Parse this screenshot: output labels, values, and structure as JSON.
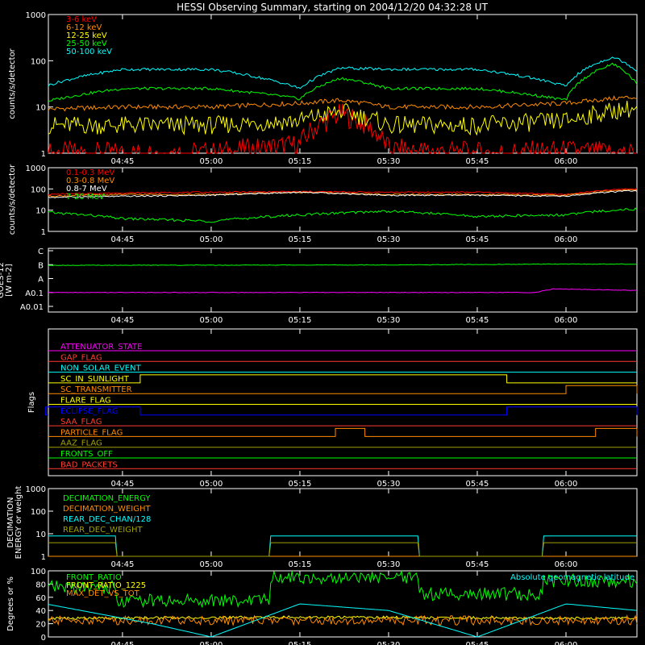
{
  "chart_data": [
    {
      "type": "line",
      "title": "HESSI Observing Summary, starting on 2004/12/20 04:32:28 UT",
      "ylabel": "counts/s/detector",
      "yscale": "log",
      "ylim": [
        1,
        1000
      ],
      "yticks": [
        "1",
        "10",
        "100",
        "1000"
      ],
      "xlim": [
        "04:32:28",
        "06:12:00"
      ],
      "xticks": [
        "04:45",
        "05:00",
        "05:15",
        "05:30",
        "05:45",
        "06:00"
      ],
      "series": [
        {
          "name": "3-6 keV",
          "color": "#ff0000",
          "x": [
            "04:32",
            "04:45",
            "05:00",
            "05:15",
            "05:22",
            "05:30",
            "05:45",
            "06:00",
            "06:10"
          ],
          "y": [
            1,
            1,
            1,
            1.5,
            7,
            1.2,
            1,
            1.1,
            1
          ]
        },
        {
          "name": "6-12 keV",
          "color": "#ff8c00",
          "x": [
            "04:32",
            "04:45",
            "05:00",
            "05:15",
            "05:22",
            "05:30",
            "05:45",
            "06:00",
            "06:10"
          ],
          "y": [
            9,
            10,
            10,
            12,
            14,
            10,
            10,
            12,
            16
          ]
        },
        {
          "name": "12-25 keV",
          "color": "#ffff00",
          "x": [
            "04:32",
            "04:45",
            "05:00",
            "05:15",
            "05:22",
            "05:30",
            "05:45",
            "06:00",
            "06:10"
          ],
          "y": [
            4,
            4,
            4,
            5,
            8,
            4,
            4,
            5,
            9
          ]
        },
        {
          "name": "25-50 keV",
          "color": "#00ff00",
          "x": [
            "04:32",
            "04:45",
            "05:00",
            "05:15",
            "05:22",
            "05:30",
            "05:45",
            "06:00",
            "06:08",
            "06:12"
          ],
          "y": [
            13,
            25,
            25,
            15,
            42,
            25,
            25,
            14,
            85,
            30
          ]
        },
        {
          "name": "50-100 keV",
          "color": "#00ffff",
          "x": [
            "04:32",
            "04:45",
            "05:00",
            "05:15",
            "05:22",
            "05:30",
            "05:45",
            "06:00",
            "06:08",
            "06:12"
          ],
          "y": [
            28,
            65,
            65,
            25,
            70,
            65,
            65,
            28,
            120,
            60
          ]
        }
      ]
    },
    {
      "type": "line",
      "ylabel": "counts/s/detector",
      "yscale": "log",
      "ylim": [
        1,
        1000
      ],
      "yticks": [
        "1",
        "10",
        "100",
        "1000"
      ],
      "xticks": [
        "04:45",
        "05:00",
        "05:15",
        "05:30",
        "05:45",
        "06:00"
      ],
      "series": [
        {
          "name": "0.1-0.3 MeV",
          "color": "#ff0000",
          "x": [
            "04:32",
            "04:45",
            "05:00",
            "05:15",
            "05:30",
            "05:45",
            "06:00",
            "06:10"
          ],
          "y": [
            55,
            65,
            70,
            75,
            70,
            70,
            55,
            100
          ]
        },
        {
          "name": "0.3-0.8 MeV",
          "color": "#ff8c00",
          "x": [
            "04:32",
            "04:45",
            "05:00",
            "05:15",
            "05:30",
            "05:45",
            "06:00",
            "06:10"
          ],
          "y": [
            45,
            55,
            55,
            70,
            55,
            55,
            50,
            90
          ]
        },
        {
          "name": "0.8-7 MeV",
          "color": "#ffffff",
          "x": [
            "04:32",
            "04:45",
            "05:00",
            "05:15",
            "05:30",
            "05:45",
            "06:00",
            "06:10"
          ],
          "y": [
            40,
            45,
            50,
            70,
            50,
            50,
            45,
            80
          ]
        },
        {
          "name": "7-20 MeV",
          "color": "#00ff00",
          "x": [
            "04:32",
            "04:45",
            "05:00",
            "05:15",
            "05:30",
            "05:45",
            "06:00",
            "06:10"
          ],
          "y": [
            8,
            4,
            3,
            6,
            9,
            5,
            6,
            11
          ]
        }
      ]
    },
    {
      "type": "line",
      "ylabel": "GOES-12 [W m-2]",
      "ylim_labels": [
        "A0.01",
        "A0.1",
        "A",
        "B",
        "C"
      ],
      "xticks": [
        "04:45",
        "05:00",
        "05:15",
        "05:30",
        "05:45",
        "06:00"
      ],
      "series": [
        {
          "name": "long",
          "color": "#00ff00",
          "x": [
            "04:32",
            "05:30",
            "06:00",
            "06:12"
          ],
          "y": [
            9e-07,
            9.5e-07,
            1.1e-06,
            1.1e-06
          ]
        },
        {
          "name": "short",
          "color": "#ff00ff",
          "x": [
            "04:32",
            "05:55",
            "05:58",
            "06:12"
          ],
          "y": [
            1e-08,
            1e-08,
            1.8e-08,
            1.4e-08
          ]
        }
      ]
    },
    {
      "type": "line",
      "ylabel": "Flags",
      "xticks": [
        "04:45",
        "05:00",
        "05:15",
        "05:30",
        "05:45",
        "06:00"
      ],
      "flags": [
        {
          "name": "ATTENUATOR_STATE",
          "color": "#ff00ff",
          "on": []
        },
        {
          "name": "GAP_FLAG",
          "color": "#ff3b30",
          "on": []
        },
        {
          "name": "NON_SOLAR_EVENT",
          "color": "#00ffff",
          "on": []
        },
        {
          "name": "SC_IN_SUNLIGHT",
          "color": "#ffff00",
          "on": [
            [
              "04:48",
              "05:50"
            ]
          ]
        },
        {
          "name": "SC_TRANSMITTER",
          "color": "#ff8c00",
          "on": [
            [
              "06:00",
              "06:12"
            ]
          ]
        },
        {
          "name": "FLARE_FLAG",
          "color": "#ffff00",
          "on": []
        },
        {
          "name": "ECLIPSE_FLAG",
          "color": "#0000ff",
          "on": [
            [
              "04:32",
              "04:48"
            ],
            [
              "05:50",
              "06:12"
            ]
          ]
        },
        {
          "name": "SAA_FLAG",
          "color": "#ff3b30",
          "on": []
        },
        {
          "name": "PARTICLE_FLAG",
          "color": "#ff8c00",
          "on": [
            [
              "05:21",
              "05:26"
            ],
            [
              "06:05",
              "06:12"
            ]
          ]
        },
        {
          "name": "AAZ_FLAG",
          "color": "#a0a000",
          "on": []
        },
        {
          "name": "FRONTS_OFF",
          "color": "#00ff00",
          "on": []
        },
        {
          "name": "BAD_PACKETS",
          "color": "#ff3b30",
          "on": []
        }
      ]
    },
    {
      "type": "line",
      "ylabel": "DECIMATION ENERGY or weight",
      "yscale": "log",
      "ylim": [
        1,
        1000
      ],
      "yticks": [
        "1",
        "10",
        "100",
        "1000"
      ],
      "xticks": [
        "04:45",
        "05:00",
        "05:15",
        "05:30",
        "05:45",
        "06:00"
      ],
      "series": [
        {
          "name": "DECIMATION_ENERGY",
          "color": "#00ff00",
          "x": [
            "04:32",
            "06:12"
          ],
          "y": [
            1,
            1
          ]
        },
        {
          "name": "DECIMATION_WEIGHT",
          "color": "#ff8c00",
          "x": [
            "04:32",
            "06:12"
          ],
          "y": [
            1,
            1
          ]
        },
        {
          "name": "REAR_DEC_CHAN/128",
          "color": "#00ffff",
          "x": [
            "04:32",
            "04:44",
            "05:10",
            "05:35",
            "05:56",
            "06:12"
          ],
          "y": [
            8,
            1,
            8,
            1,
            8,
            8
          ]
        },
        {
          "name": "REAR_DEC_WEIGHT",
          "color": "#a0a000",
          "x": [
            "04:32",
            "04:44",
            "05:10",
            "05:35",
            "05:56",
            "06:12"
          ],
          "y": [
            4,
            1,
            4,
            1,
            4,
            4
          ]
        }
      ]
    },
    {
      "type": "line",
      "ylabel": "Degrees or %",
      "ylim": [
        0,
        100
      ],
      "yticks": [
        "0",
        "20",
        "40",
        "60",
        "80",
        "100"
      ],
      "xticks": [
        "04:45",
        "05:00",
        "05:15",
        "05:30",
        "05:45",
        "06:00"
      ],
      "annotation": "Absolute geomagnetic latitude",
      "series": [
        {
          "name": "FRONT_RATIO",
          "color": "#00ff00",
          "x": [
            "04:32",
            "04:44",
            "05:10",
            "05:35",
            "05:56",
            "06:12"
          ],
          "y": [
            75,
            55,
            90,
            65,
            85,
            85
          ]
        },
        {
          "name": "FRONT_RATIO_1225",
          "color": "#ffff00",
          "x": [
            "04:32",
            "05:15",
            "06:12"
          ],
          "y": [
            28,
            30,
            28
          ]
        },
        {
          "name": "MAX_DET_VS_TOT",
          "color": "#ff8c00",
          "x": [
            "04:32",
            "05:15",
            "06:12"
          ],
          "y": [
            25,
            25,
            25
          ]
        },
        {
          "name": "Absolute geomagnetic latitude",
          "color": "#00ffff",
          "x": [
            "04:32",
            "04:50",
            "05:00",
            "05:15",
            "05:30",
            "05:45",
            "06:00",
            "06:12"
          ],
          "y": [
            50,
            20,
            0,
            50,
            40,
            0,
            50,
            40
          ]
        }
      ]
    }
  ]
}
